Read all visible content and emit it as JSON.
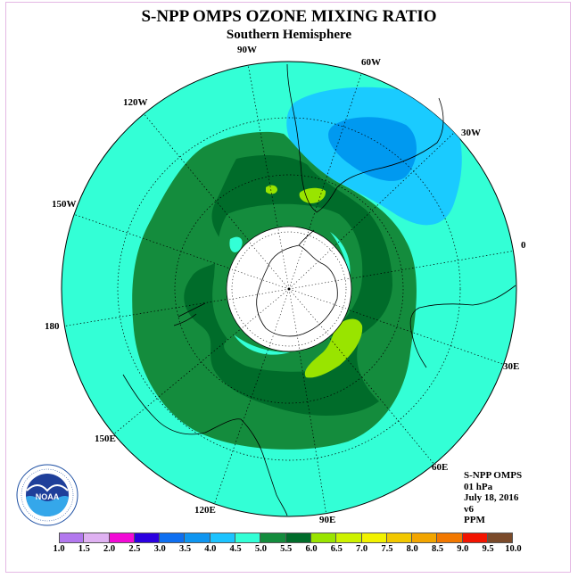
{
  "header": {
    "title": "S-NPP OMPS OZONE MIXING RATIO",
    "subtitle": "Southern Hemisphere"
  },
  "map": {
    "projection": "south-polar-stereographic",
    "longitude_labels": {
      "lon_90w": "90W",
      "lon_60w": "60W",
      "lon_30w": "30W",
      "lon_0": "0",
      "lon_30e": "30E",
      "lon_60e": "60E",
      "lon_90e": "90E",
      "lon_120e": "120E",
      "lon_150e": "150E",
      "lon_180": "180",
      "lon_150w": "150W",
      "lon_120w": "120W"
    },
    "colors": {
      "background_field": "#33ffd6",
      "band_5_0_5_5": "#148c3d",
      "band_5_5_6_0": "#006c2a",
      "band_6_0_6_5": "#99e400",
      "band_4_0_4_5": "#1acbff",
      "band_3_5_4_0": "#0099f0",
      "polar_night_mask": "#ffffff"
    }
  },
  "info_box": {
    "instrument": "S-NPP OMPS",
    "pressure_level": "01 hPa",
    "date": "July 18, 2016",
    "version": "v6",
    "units": "PPM"
  },
  "logo": {
    "acronym": "NOAA",
    "ring_text_top": "NATIONAL OCEANIC AND ATMOSPHERIC ADMINISTRATION",
    "ring_text_bottom": "U.S. DEPARTMENT OF COMMERCE",
    "icon": "noaa-logo-icon"
  },
  "colorbar": {
    "ticks": [
      "1.0",
      "1.5",
      "2.0",
      "2.5",
      "3.0",
      "3.5",
      "4.0",
      "4.5",
      "5.0",
      "5.5",
      "6.0",
      "6.5",
      "7.0",
      "7.5",
      "8.0",
      "8.5",
      "9.0",
      "9.5",
      "10.0"
    ],
    "colors": [
      "#b278ee",
      "#dfb1f2",
      "#f20ad6",
      "#2b00e0",
      "#0f6ff0",
      "#0f95f0",
      "#1cc3ff",
      "#33ffd6",
      "#148c3d",
      "#006c2a",
      "#99e400",
      "#cdf200",
      "#f2f200",
      "#f2c800",
      "#f2a500",
      "#f27800",
      "#f21400",
      "#7a4a2a"
    ]
  }
}
